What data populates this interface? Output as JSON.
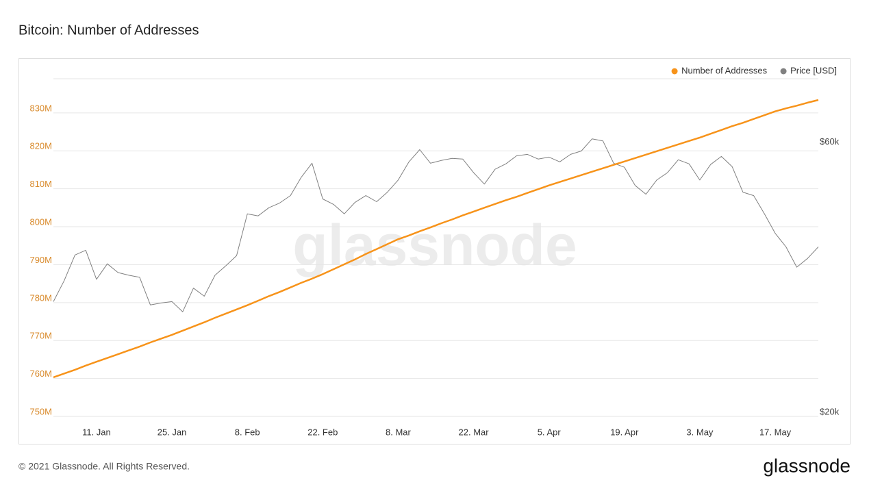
{
  "chart_data": {
    "type": "line",
    "title": "Bitcoin: Number of Addresses",
    "watermark": "glassnode",
    "categories": [
      null,
      null,
      null,
      null,
      "11. Jan",
      null,
      null,
      null,
      null,
      null,
      null,
      "25. Jan",
      null,
      null,
      null,
      null,
      null,
      null,
      "8. Feb",
      null,
      null,
      null,
      null,
      null,
      null,
      "22. Feb",
      null,
      null,
      null,
      null,
      null,
      null,
      "8. Mar",
      null,
      null,
      null,
      null,
      null,
      null,
      "22. Mar",
      null,
      null,
      null,
      null,
      null,
      null,
      "5. Apr",
      null,
      null,
      null,
      null,
      null,
      null,
      "19. Apr",
      null,
      null,
      null,
      null,
      null,
      null,
      "3. May",
      null,
      null,
      null,
      null,
      null,
      null,
      "17. May",
      null,
      null,
      null,
      null
    ],
    "series": [
      {
        "name": "Number of Addresses",
        "color": "#f7931a",
        "axis": "y",
        "values": [
          760.3,
          761.3,
          762.3,
          763.4,
          764.4,
          765.4,
          766.4,
          767.4,
          768.4,
          769.5,
          770.5,
          771.5,
          772.6,
          773.7,
          774.8,
          776.0,
          777.1,
          778.2,
          779.3,
          780.5,
          781.7,
          782.8,
          784.0,
          785.2,
          786.3,
          787.5,
          788.8,
          790.1,
          791.4,
          792.8,
          794.1,
          795.4,
          796.7,
          797.7,
          798.8,
          799.8,
          800.9,
          801.9,
          803.0,
          804.0,
          805.0,
          806.0,
          807.0,
          807.9,
          808.9,
          809.9,
          810.9,
          811.8,
          812.7,
          813.6,
          814.5,
          815.4,
          816.3,
          817.2,
          818.1,
          819.0,
          819.9,
          820.8,
          821.7,
          822.6,
          823.5,
          824.5,
          825.5,
          826.5,
          827.4,
          828.4,
          829.4,
          830.4,
          831.2,
          831.9,
          832.7,
          833.4
        ]
      },
      {
        "name": "Price [USD]",
        "color": "#808080",
        "axis": "y2",
        "values": [
          37000,
          40100,
          43900,
          44600,
          40300,
          42600,
          41300,
          40900,
          40600,
          36500,
          36800,
          37000,
          35500,
          39000,
          37800,
          40900,
          42300,
          43800,
          50000,
          49700,
          50900,
          51600,
          52700,
          55400,
          57500,
          52200,
          51400,
          50000,
          51700,
          52700,
          51800,
          53200,
          55000,
          57700,
          59500,
          57500,
          57900,
          58200,
          58100,
          56100,
          54400,
          56600,
          57400,
          58600,
          58800,
          58100,
          58400,
          57700,
          58800,
          59300,
          61100,
          60800,
          57500,
          56900,
          54200,
          52900,
          55000,
          56100,
          58000,
          57400,
          55000,
          57300,
          58500,
          57000,
          53200,
          52700,
          50000,
          47100,
          45100,
          42100,
          43400,
          45100
        ]
      }
    ],
    "ylim": [
      750,
      839
    ],
    "yticks": [
      {
        "value": 750,
        "label": "750M"
      },
      {
        "value": 760,
        "label": "760M"
      },
      {
        "value": 770,
        "label": "770M"
      },
      {
        "value": 780,
        "label": "780M"
      },
      {
        "value": 790,
        "label": "790M"
      },
      {
        "value": 800,
        "label": "800M"
      },
      {
        "value": 810,
        "label": "810M"
      },
      {
        "value": 820,
        "label": "820M"
      },
      {
        "value": 830,
        "label": "830M"
      }
    ],
    "y2lim": [
      20000,
      70000
    ],
    "y2ticks": [
      {
        "value": 20000,
        "label": "$20k"
      },
      {
        "value": 60000,
        "label": "$60k"
      }
    ],
    "grid": true,
    "legend": "top-right"
  },
  "footer": {
    "copyright": "© 2021 Glassnode. All Rights Reserved.",
    "logo": "glassnode"
  }
}
